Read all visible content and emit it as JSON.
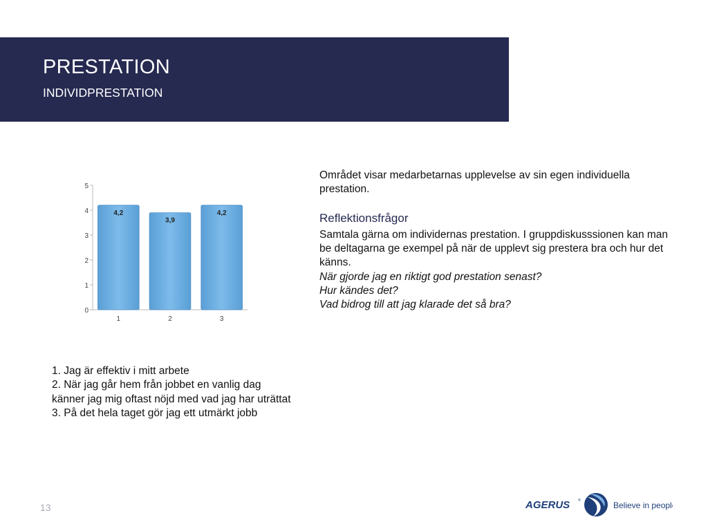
{
  "slide": {
    "title": "PRESTATION",
    "subtitle": "INDIVIDPRESTATION",
    "page_number": "13"
  },
  "text": {
    "intro": "Området visar medarbetarnas upplevelse av sin egen individuella prestation.",
    "reflection_heading": "Reflektionsfrågor",
    "reflection_body": "Samtala gärna om individernas prestation. I gruppdiskusssionen kan man be deltagarna ge exempel på när de upplevt sig prestera bra och hur det känns.",
    "questions": [
      "När gjorde jag en riktigt god prestation senast?",
      "Hur kändes det?",
      "Vad bidrog till att jag klarade det så bra?"
    ]
  },
  "legend": [
    "1. Jag är effektiv i mitt arbete",
    "2. När jag går hem från jobbet en vanlig dag känner jag mig oftast nöjd med vad jag har uträttat",
    "3. På det hela taget gör jag ett utmärkt jobb"
  ],
  "chart_data": {
    "type": "bar",
    "categories": [
      "1",
      "2",
      "3"
    ],
    "values": [
      4.2,
      3.9,
      4.2
    ],
    "value_labels": [
      "4,2",
      "3,9",
      "4,2"
    ],
    "ylim": [
      0,
      5
    ],
    "yticks": [
      0,
      1,
      2,
      3,
      4,
      5
    ],
    "title": "",
    "xlabel": "",
    "ylabel": "",
    "grid": false,
    "bar_color": "#6fb0e3"
  },
  "brand": {
    "name": "AGERUS",
    "tagline": "Believe in people",
    "color": "#1f3f7a"
  },
  "colors": {
    "header_band": "#262a51",
    "heading_accent": "#262a51"
  }
}
